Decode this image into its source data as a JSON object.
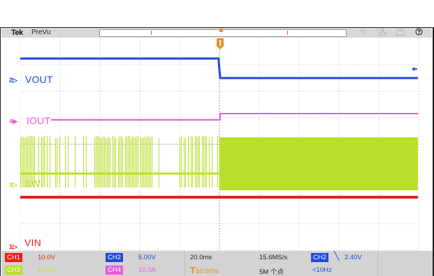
{
  "topbar": {
    "brand": "Tek",
    "mode": "PreVu"
  },
  "channels": [
    {
      "id": "2",
      "name": "VOUT",
      "color": "#2048d8"
    },
    {
      "id": "4",
      "name": "IOUT",
      "color": "#e85ad8"
    },
    {
      "id": "3",
      "name": "SW",
      "color": "#b8e02a"
    },
    {
      "id": "1",
      "name": "VIN",
      "color": "#e81e1e"
    }
  ],
  "status": {
    "ch1": {
      "label": "CH1",
      "scale": "10.0V",
      "color": "#e81e1e"
    },
    "ch2": {
      "label": "CH2",
      "scale": "5.00V",
      "color": "#2048d8"
    },
    "ch3": {
      "label": "CH3",
      "scale": "10.0V",
      "color": "#b8e02a"
    },
    "ch4": {
      "label": "CH4",
      "scale": "10.0A",
      "color": "#e85ad8"
    },
    "timebase": "20.0ms",
    "trigger_position": "50.00%",
    "sample_rate": "15.6MS/s",
    "record_length": "5M 个点",
    "trigger_source": "CH2",
    "trigger_level": "2.40V",
    "trigger_freq": "<10Hz"
  },
  "icons": [
    "wifi-icon",
    "network-icon",
    "save-icon",
    "help-icon",
    "trigger-marker-icon"
  ],
  "colors": {
    "trigger": "#f08a1c",
    "grid": "#aaaaaa",
    "statusbar": "#d3d3d3"
  }
}
